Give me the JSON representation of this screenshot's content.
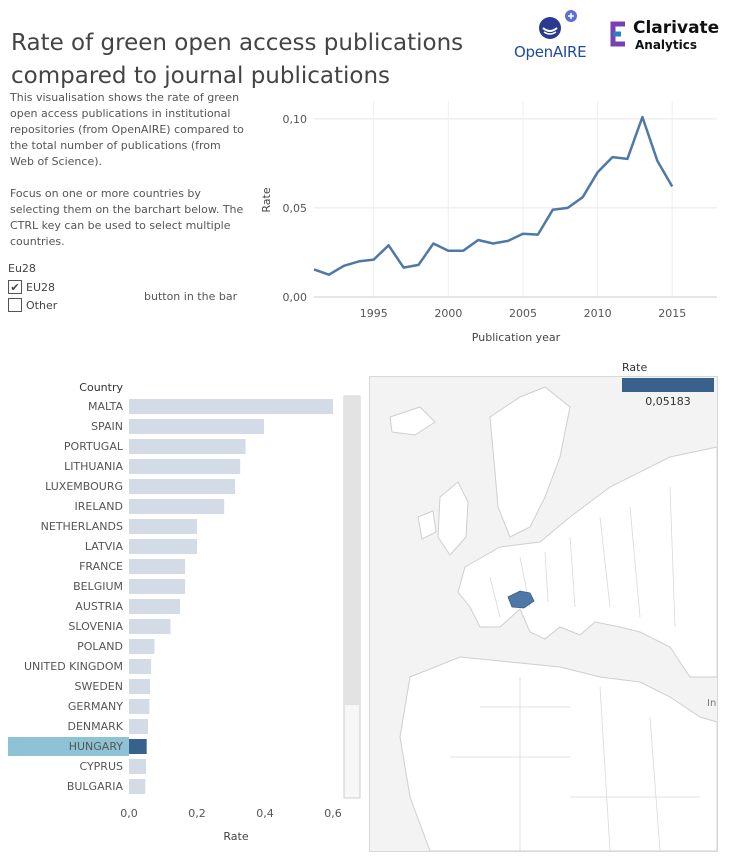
{
  "header": {
    "title": "Rate of green open access publications compared to journal publications",
    "logos": {
      "openaire": "OpenAIRE",
      "clarivate_line1": "Clarivate",
      "clarivate_line2": "Analytics"
    }
  },
  "description": {
    "para1": "This visualisation shows the rate of green open access publications in institutional repositories (from OpenAIRE) compared to the total number of publications (from Web of Science).",
    "para2": "Focus on one or more countries by selecting them on the barchart below. The CTRL key can be used to select multiple countries.",
    "tail": "button in the bar"
  },
  "filter": {
    "title": "Eu28",
    "options": [
      {
        "label": "EU28",
        "checked": true
      },
      {
        "label": "Other",
        "checked": false
      }
    ]
  },
  "map": {
    "legend_title": "Rate",
    "legend_value": "0,05183",
    "edge_label": "In",
    "colors": {
      "land": "#ffffff",
      "border": "#cfcfcf",
      "sea": "#f3f3f3",
      "highlight": "#4e79a7"
    }
  },
  "chart_data": [
    {
      "type": "line",
      "xlabel": "Publication year",
      "ylabel": "Rate",
      "xlim": [
        1991,
        2018
      ],
      "ylim": [
        0,
        0.11
      ],
      "x_ticks": [
        1995,
        2000,
        2005,
        2010,
        2015
      ],
      "y_ticks": [
        0,
        0.05,
        0.1
      ],
      "y_tick_labels": [
        "0,00",
        "0,05",
        "0,10"
      ],
      "grid": true,
      "color": "#4e79a7",
      "x": [
        1991,
        1992,
        1993,
        1994,
        1995,
        1996,
        1997,
        1998,
        1999,
        2000,
        2001,
        2002,
        2003,
        2004,
        2005,
        2006,
        2007,
        2008,
        2009,
        2010,
        2011,
        2012,
        2013,
        2014,
        2015
      ],
      "y": [
        0.0155,
        0.0125,
        0.0175,
        0.02,
        0.021,
        0.029,
        0.0165,
        0.018,
        0.03,
        0.026,
        0.026,
        0.032,
        0.03,
        0.0315,
        0.0355,
        0.035,
        0.049,
        0.05,
        0.056,
        0.07,
        0.0785,
        0.0775,
        0.101,
        0.0765,
        0.062
      ]
    },
    {
      "type": "bar",
      "orientation": "horizontal",
      "category_header": "Country",
      "xlabel": "Rate",
      "xlim": [
        0,
        0.65
      ],
      "x_ticks": [
        0,
        0.2,
        0.4,
        0.6
      ],
      "x_tick_labels": [
        "0,0",
        "0,2",
        "0,4",
        "0,6"
      ],
      "highlighted": "HUNGARY",
      "colors": {
        "bar": "#d3dce6",
        "highlight_bar": "#38618c",
        "highlight_row": "#8ec3d5"
      },
      "categories": [
        "MALTA",
        "SPAIN",
        "PORTUGAL",
        "LITHUANIA",
        "LUXEMBOURG",
        "IRELAND",
        "NETHERLANDS",
        "LATVIA",
        "FRANCE",
        "BELGIUM",
        "AUSTRIA",
        "SLOVENIA",
        "POLAND",
        "UNITED KINGDOM",
        "SWEDEN",
        "GERMANY",
        "DENMARK",
        "HUNGARY",
        "CYPRUS",
        "BULGARIA"
      ],
      "values": [
        0.6,
        0.397,
        0.343,
        0.327,
        0.312,
        0.28,
        0.2,
        0.2,
        0.165,
        0.165,
        0.15,
        0.122,
        0.075,
        0.065,
        0.062,
        0.06,
        0.056,
        0.052,
        0.05,
        0.048
      ]
    }
  ]
}
